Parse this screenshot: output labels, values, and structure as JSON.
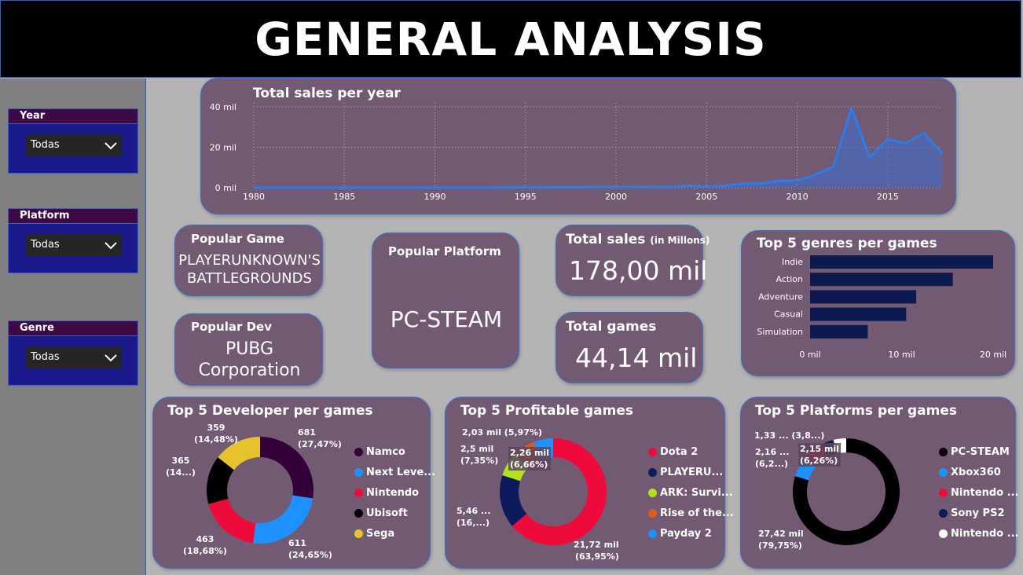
{
  "header": {
    "title": "GENERAL ANALYSIS"
  },
  "filters": {
    "year": {
      "label": "Year",
      "value": "Todas"
    },
    "platform": {
      "label": "Platform",
      "value": "Todas"
    },
    "genre": {
      "label": "Genre",
      "value": "Todas"
    }
  },
  "kpis": {
    "popular_game": {
      "label": "Popular Game",
      "value_line1": "PLAYERUNKNOWN'S",
      "value_line2": "BATTLEGROUNDS"
    },
    "popular_dev": {
      "label": "Popular Dev",
      "value_line1": "PUBG",
      "value_line2": "Corporation"
    },
    "popular_platform": {
      "label": "Popular Platform",
      "value": "PC-STEAM"
    },
    "total_sales": {
      "label": "Total sales",
      "unit_note": "(in Millons)",
      "value": "178,00 mil"
    },
    "total_games": {
      "label": "Total games",
      "value": "44,14 mil"
    }
  },
  "colors": {
    "accent": "#3a6fd0",
    "card_bg": "#725a72",
    "line": "#2f7be8",
    "bar": "#0d1a50"
  },
  "chart_data": [
    {
      "type": "area",
      "title": "Total sales per year",
      "x": [
        1980,
        1981,
        1982,
        1983,
        1984,
        1985,
        1986,
        1987,
        1988,
        1989,
        1990,
        1991,
        1992,
        1993,
        1994,
        1995,
        1996,
        1997,
        1998,
        1999,
        2000,
        2001,
        2002,
        2003,
        2004,
        2005,
        2006,
        2007,
        2008,
        2009,
        2010,
        2011,
        2012,
        2013,
        2014,
        2015,
        2016,
        2017,
        2018
      ],
      "y": [
        0.1,
        0.1,
        0.1,
        0.1,
        0.1,
        0.1,
        0.1,
        0.1,
        0.1,
        0.1,
        0.1,
        0.1,
        0.1,
        0.1,
        0.2,
        0.2,
        0.2,
        0.3,
        0.3,
        0.4,
        0.4,
        0.4,
        0.5,
        0.5,
        1.0,
        0.5,
        1.0,
        2.0,
        2.0,
        3.5,
        3.5,
        6.5,
        10.5,
        39.5,
        15,
        24,
        22,
        27,
        17
      ],
      "x_ticks": [
        "1980",
        "1985",
        "1990",
        "1995",
        "2000",
        "2005",
        "2010",
        "2015"
      ],
      "y_ticks": [
        "0 mil",
        "20 mil",
        "40 mil"
      ],
      "ylim": [
        0,
        42
      ],
      "grid": true
    },
    {
      "type": "bar",
      "title": "Top 5 genres per games",
      "categories": [
        "Indie",
        "Action",
        "Adventure",
        "Casual",
        "Simulation"
      ],
      "values": [
        20000,
        15600,
        11600,
        10500,
        6300
      ],
      "x_ticks": [
        "0 mil",
        "10 mil",
        "20 mil"
      ],
      "xlim": [
        0,
        20000
      ]
    },
    {
      "type": "pie",
      "title": "Top 5 Developer per games",
      "labels": [
        "Namco",
        "Next Leve...",
        "Nintendo",
        "Ubisoft",
        "Sega"
      ],
      "values": [
        681,
        611,
        463,
        365,
        359
      ],
      "colors": [
        "#33003a",
        "#1e90ff",
        "#ee0b3c",
        "#000000",
        "#e6c22d"
      ],
      "data_labels": [
        [
          "681",
          "(27,47%)"
        ],
        [
          "611",
          "(24,65%)"
        ],
        [
          "463",
          "(18,68%)"
        ],
        [
          "365",
          "(14...)"
        ],
        [
          "359",
          "(14,48%)"
        ]
      ]
    },
    {
      "type": "pie",
      "title": "Top 5 Profitable games",
      "labels": [
        "Dota 2",
        "PLAYERU...",
        "ARK: Survi...",
        "Rise of the...",
        "Payday 2"
      ],
      "values": [
        21.72,
        5.46,
        2.5,
        2.26,
        2.03
      ],
      "colors": [
        "#ee0b3c",
        "#0d1a5c",
        "#b2e01c",
        "#e05a1a",
        "#1e90ff"
      ],
      "data_labels": [
        [
          "21,72 mil",
          "(63,95%)"
        ],
        [
          "5,46 ...",
          "(16,...)"
        ],
        [
          "2,5 mil",
          "(7,35%)"
        ],
        [
          "2,26 mil",
          "(6,66%)"
        ],
        [
          "2,03 mil (5,97%)"
        ]
      ]
    },
    {
      "type": "pie",
      "title": "Top 5 Platforms per games",
      "labels": [
        "PC-STEAM",
        "Xbox360",
        "Nintendo ...",
        "Sony PS2",
        "Nintendo ..."
      ],
      "values": [
        27.42,
        2.16,
        2.15,
        1.33,
        1.33
      ],
      "colors": [
        "#000000",
        "#1e90ff",
        "#ee0b3c",
        "#0d1a5c",
        "#ffffff"
      ],
      "data_labels": [
        [
          "27,42 mil",
          "(79,75%)"
        ],
        [
          "2,16 ...",
          "(6,2...)"
        ],
        [
          "2,15 mil",
          "(6,26%)"
        ],
        [
          "1,33 ... (3,8...)"
        ]
      ]
    }
  ]
}
